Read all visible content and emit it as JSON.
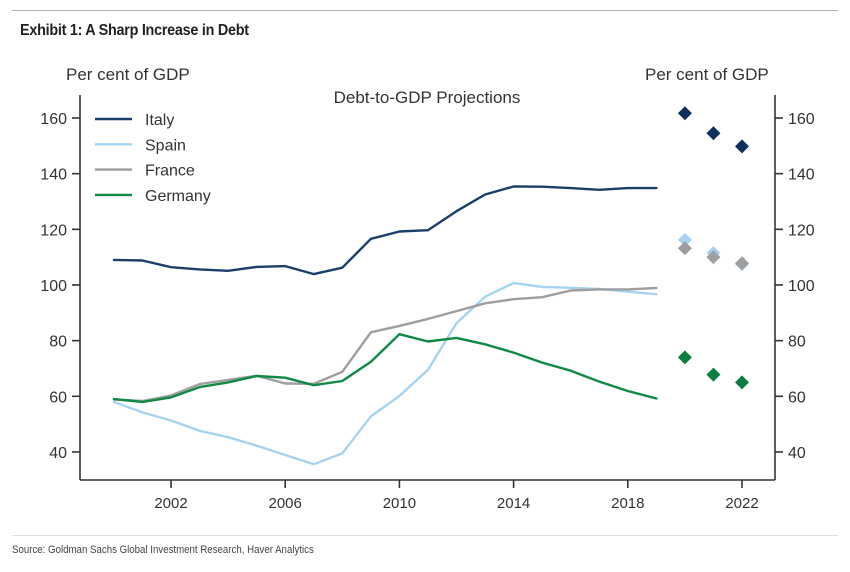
{
  "exhibit_title": "Exhibit 1: A Sharp Increase in Debt",
  "source": "Source: Goldman Sachs Global Investment Research, Haver Analytics",
  "chart_data": {
    "type": "line",
    "title": "Debt-to-GDP Projections",
    "ylabel_left": "Per cent of GDP",
    "ylabel_right": "Per cent of GDP",
    "xlabel": "",
    "ylim": [
      30,
      168
    ],
    "xlim": [
      1999,
      2023
    ],
    "yticks": [
      40,
      60,
      80,
      100,
      120,
      140,
      160
    ],
    "xticks": [
      2002,
      2006,
      2010,
      2014,
      2018,
      2022
    ],
    "grid": false,
    "legend_position": "top-left",
    "x": [
      2000,
      2001,
      2002,
      2003,
      2004,
      2005,
      2006,
      2007,
      2008,
      2009,
      2010,
      2011,
      2012,
      2013,
      2014,
      2015,
      2016,
      2017,
      2018,
      2019
    ],
    "series": [
      {
        "name": "Italy",
        "color": "#1b3f6b",
        "values": [
          109,
          108.8,
          106.4,
          105.6,
          105.1,
          106.5,
          106.8,
          103.9,
          106.2,
          116.6,
          119.2,
          119.7,
          126.5,
          132.5,
          135.4,
          135.3,
          134.8,
          134.2,
          134.8,
          134.8
        ]
      },
      {
        "name": "Spain",
        "color": "#a7d3f2",
        "values": [
          58,
          54.2,
          51.3,
          47.6,
          45.3,
          42.3,
          38.9,
          35.6,
          39.5,
          52.8,
          60.1,
          69.5,
          86.3,
          95.8,
          100.7,
          99.3,
          99.0,
          98.6,
          97.6,
          96.7
        ]
      },
      {
        "name": "France",
        "color": "#9e9e9e",
        "values": [
          58.9,
          58.3,
          60.3,
          64.4,
          65.9,
          67.4,
          64.6,
          64.5,
          68.8,
          83.0,
          85.3,
          87.8,
          90.6,
          93.4,
          94.9,
          95.6,
          98.0,
          98.4,
          98.4,
          98.9
        ]
      },
      {
        "name": "Germany",
        "color": "#0f8a45",
        "values": [
          59.0,
          58.0,
          59.6,
          63.3,
          65.0,
          67.3,
          66.7,
          64.0,
          65.5,
          72.4,
          82.3,
          79.7,
          81.0,
          78.7,
          75.7,
          72.1,
          69.2,
          65.3,
          61.9,
          59.2
        ]
      }
    ],
    "projections": {
      "x": [
        2020,
        2021,
        2022
      ],
      "series": [
        {
          "name": "Italy",
          "color": "#0d2f5c",
          "values": [
            161.7,
            154.5,
            149.8
          ]
        },
        {
          "name": "Spain",
          "color": "#a7d3f2",
          "values": [
            116.2,
            111.5,
            107.5
          ]
        },
        {
          "name": "France",
          "color": "#9e9e9e",
          "values": [
            113.2,
            110.0,
            107.8
          ]
        },
        {
          "name": "Germany",
          "color": "#0b7d3e",
          "values": [
            74.0,
            67.8,
            65.0
          ]
        }
      ]
    }
  }
}
